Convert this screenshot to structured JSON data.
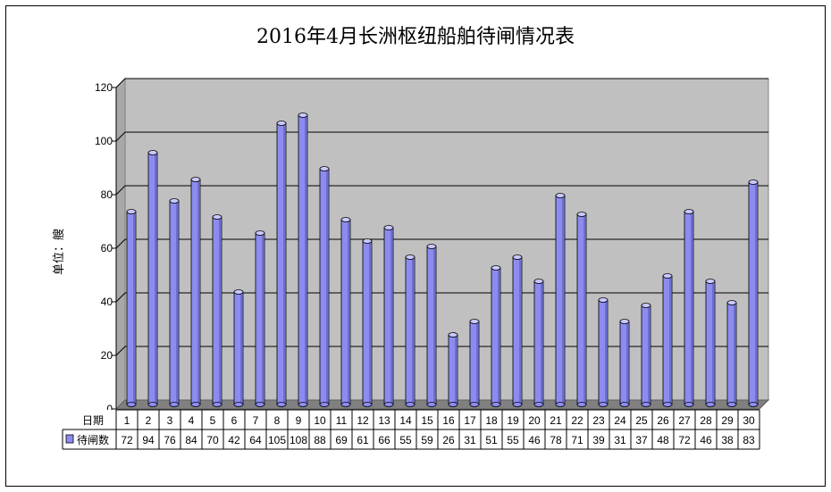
{
  "chart_data": {
    "type": "bar",
    "title": "2016年4月长洲枢纽船舶待闸情况表",
    "ylabel": "单位：艘",
    "ylim": [
      0,
      120
    ],
    "yticks": [
      0,
      20,
      40,
      60,
      80,
      100,
      120
    ],
    "grid": true,
    "table_header": "日期",
    "categories": [
      "1",
      "2",
      "3",
      "4",
      "5",
      "6",
      "7",
      "8",
      "9",
      "10",
      "11",
      "12",
      "13",
      "14",
      "15",
      "16",
      "17",
      "18",
      "19",
      "20",
      "21",
      "22",
      "23",
      "24",
      "25",
      "26",
      "27",
      "28",
      "29",
      "30"
    ],
    "series": [
      {
        "name": "待闸数",
        "color": "#8c8cf0",
        "values": [
          72,
          94,
          76,
          84,
          70,
          42,
          64,
          105,
          108,
          88,
          69,
          61,
          66,
          55,
          59,
          26,
          31,
          51,
          55,
          46,
          78,
          71,
          39,
          31,
          37,
          48,
          72,
          46,
          38,
          83
        ]
      }
    ],
    "colors": {
      "plot_background": "#c0c0c0",
      "floor": "#808080",
      "bar_fill": "#8c8cf0",
      "bar_top": "#c8c8ff",
      "bar_shade": "#5a5ab4"
    }
  }
}
